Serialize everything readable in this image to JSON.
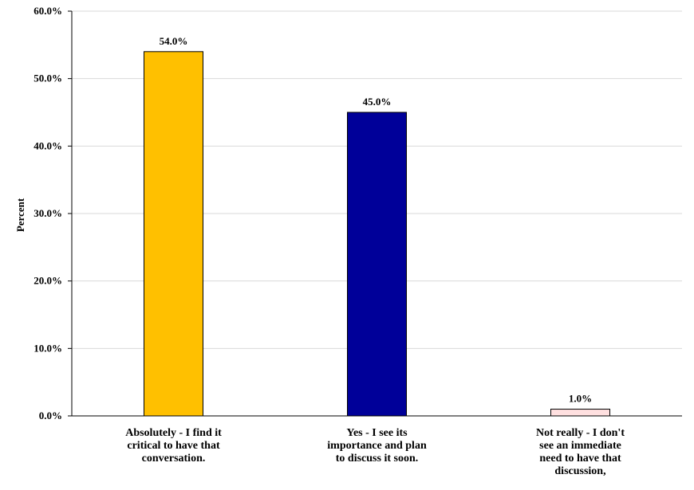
{
  "chart_data": {
    "type": "bar",
    "title": "",
    "xlabel": "",
    "ylabel": "Percent",
    "ylim": [
      0,
      60
    ],
    "yticks": [
      "0.0%",
      "10.0%",
      "20.0%",
      "30.0%",
      "40.0%",
      "50.0%",
      "60.0%"
    ],
    "grid": true,
    "legend": "none",
    "categories": [
      [
        "Absolutely - I find it",
        "critical to have that",
        "conversation."
      ],
      [
        "Yes - I see its",
        "importance and plan",
        "to discuss it soon."
      ],
      [
        "Not really - I don't",
        "see an immediate",
        "need to have that",
        "discussion,"
      ]
    ],
    "values": [
      54.0,
      45.0,
      1.0
    ],
    "data_labels": [
      "54.0%",
      "45.0%",
      "1.0%"
    ],
    "colors": [
      "#FFC000",
      "#000099",
      "#FFE0E0"
    ]
  }
}
